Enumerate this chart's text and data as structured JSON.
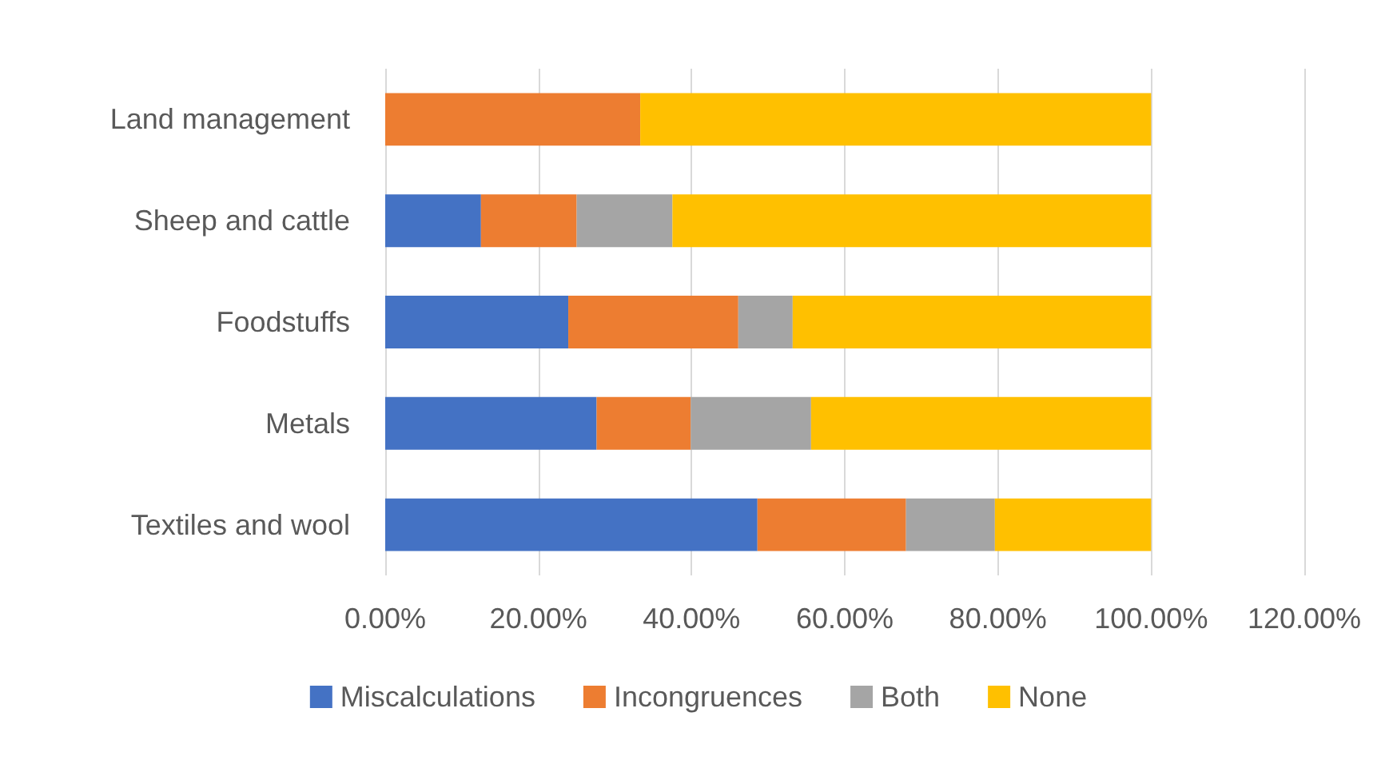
{
  "chart_data": {
    "type": "bar",
    "orientation": "horizontal",
    "stacked": true,
    "categories": [
      "Land management",
      "Sheep and cattle",
      "Foodstuffs",
      "Metals",
      "Textiles and wool"
    ],
    "series": [
      {
        "name": "Miscalculations",
        "color": "#4472c4",
        "values": [
          0,
          12.5,
          23.9,
          27.6,
          48.6
        ]
      },
      {
        "name": "Incongruences",
        "color": "#ed7d31",
        "values": [
          33.3,
          12.5,
          22.2,
          12.3,
          19.4
        ]
      },
      {
        "name": "Both",
        "color": "#a5a5a5",
        "values": [
          0,
          12.5,
          7.1,
          15.7,
          11.6
        ]
      },
      {
        "name": "None",
        "color": "#ffc000",
        "values": [
          66.7,
          62.5,
          46.8,
          44.4,
          20.4
        ]
      }
    ],
    "xlim": [
      0,
      120
    ],
    "xticks": [
      {
        "value": 0,
        "label": "0.00%"
      },
      {
        "value": 20,
        "label": "20.00%"
      },
      {
        "value": 40,
        "label": "40.00%"
      },
      {
        "value": 60,
        "label": "60.00%"
      },
      {
        "value": 80,
        "label": "80.00%"
      },
      {
        "value": 100,
        "label": "100.00%"
      },
      {
        "value": 120,
        "label": "120.00%"
      }
    ],
    "grid": "x",
    "legend": "bottom"
  }
}
